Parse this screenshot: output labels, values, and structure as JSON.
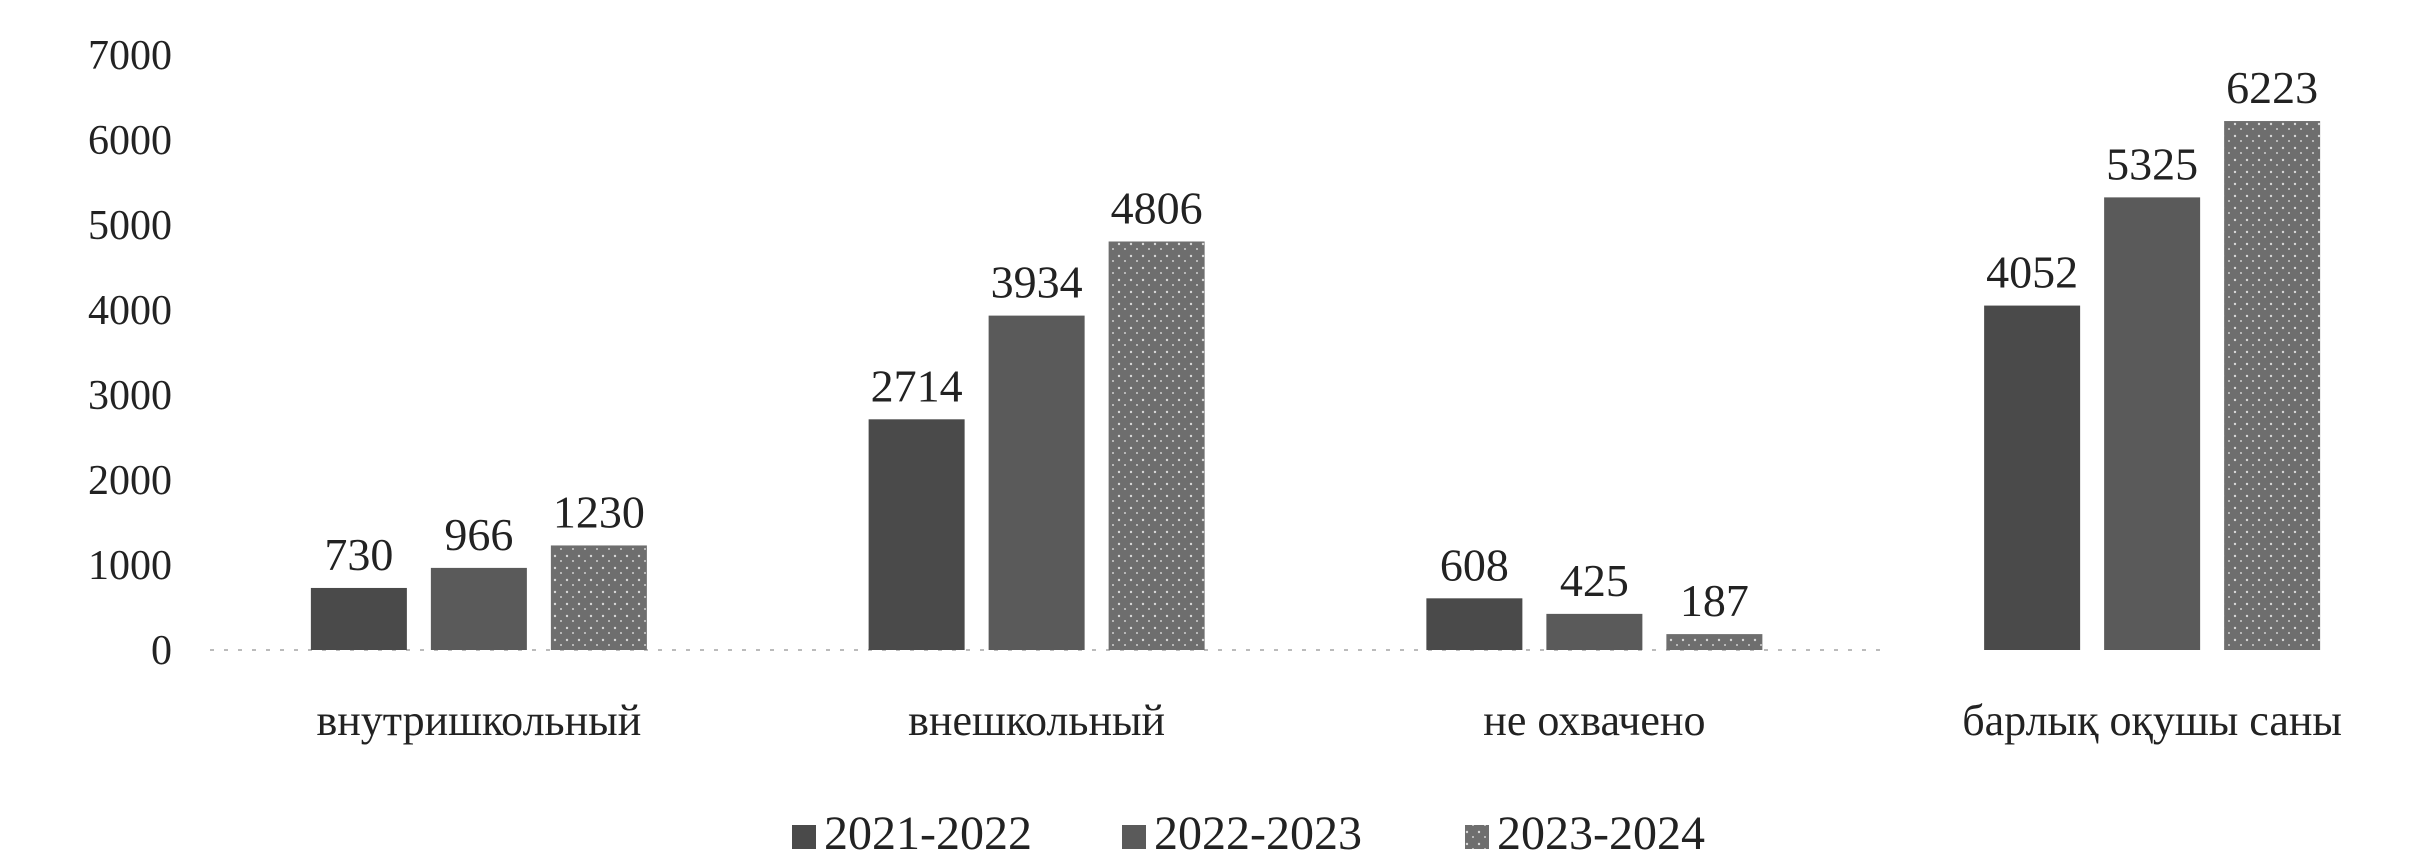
{
  "chart_data": {
    "type": "bar",
    "title": "",
    "xlabel": "",
    "ylabel": "",
    "ylim": [
      0,
      7000
    ],
    "yticks": [
      0,
      1000,
      2000,
      3000,
      4000,
      5000,
      6000,
      7000
    ],
    "grid": false,
    "legend_position": "bottom",
    "categories": [
      "внутришкольный",
      "внешкольный",
      "не охвачено",
      "барлық оқушы саны"
    ],
    "series": [
      {
        "name": "2021-2022",
        "values": [
          730,
          2714,
          608,
          4052
        ],
        "color": "#4a4a4a"
      },
      {
        "name": "2022-2023",
        "values": [
          966,
          3934,
          425,
          5325
        ],
        "color": "#5a5a5a"
      },
      {
        "name": "2023-2024",
        "values": [
          1230,
          4806,
          187,
          6223
        ],
        "color": "#6e6e6e"
      }
    ]
  }
}
